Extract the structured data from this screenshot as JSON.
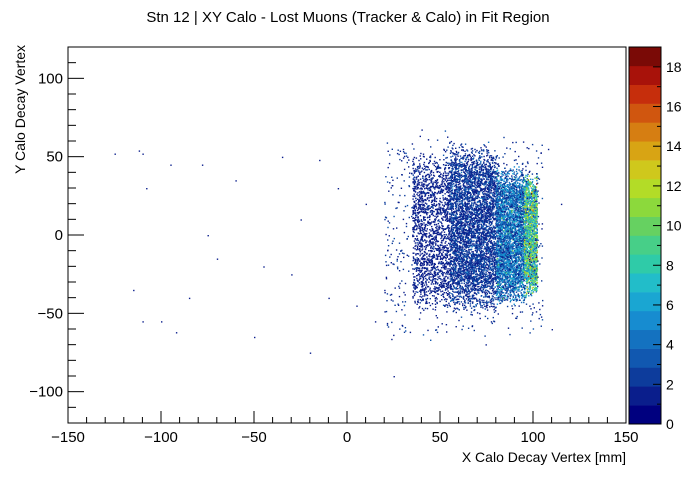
{
  "chart_data": {
    "type": "heatmap",
    "title": "Stn 12 | XY Calo - Lost Muons (Tracker & Calo) in Fit Region",
    "xlabel": "X Calo Decay Vertex [mm]",
    "ylabel": "Y Calo Decay Vertex",
    "xlim": [
      -150,
      150
    ],
    "ylim": [
      -120,
      120
    ],
    "x_ticks": [
      -150,
      -100,
      -50,
      0,
      50,
      100,
      150
    ],
    "y_ticks": [
      -100,
      -50,
      0,
      50,
      100
    ],
    "x_tick_labels": [
      "−150",
      "−100",
      "−50",
      "0",
      "50",
      "100",
      "150"
    ],
    "y_tick_labels": [
      "−100",
      "−50",
      "0",
      "50",
      "100"
    ],
    "colorbar": {
      "min": 0,
      "max": 19,
      "ticks": [
        0,
        2,
        4,
        6,
        8,
        10,
        12,
        14,
        16,
        18
      ],
      "colors": [
        "#00007f",
        "#0a1e8c",
        "#0d3c9c",
        "#1158b0",
        "#1472c0",
        "#178cd0",
        "#1aa6d2",
        "#22bdc9",
        "#2fcba8",
        "#47cf88",
        "#66d161",
        "#8cd93c",
        "#b3dc27",
        "#cfc81c",
        "#d8a414",
        "#d67e12",
        "#d0560f",
        "#c62e0c",
        "#a8120a",
        "#7a0a06"
      ]
    },
    "grid": false,
    "legend": "none",
    "density_regions": [
      {
        "x_range": [
          35,
          55
        ],
        "y_range": [
          -50,
          55
        ],
        "typical_count": 1
      },
      {
        "x_range": [
          55,
          80
        ],
        "y_range": [
          -50,
          60
        ],
        "typical_count": 2
      },
      {
        "x_range": [
          80,
          95
        ],
        "y_range": [
          -45,
          45
        ],
        "typical_count": 4
      },
      {
        "x_range": [
          95,
          102
        ],
        "y_range": [
          -40,
          40
        ],
        "typical_count": 8
      }
    ],
    "hot_spots": [
      {
        "x": 98,
        "y": 15,
        "value": 12
      },
      {
        "x": 97,
        "y": -10,
        "value": 11
      },
      {
        "x": 99,
        "y": 0,
        "value": 10
      },
      {
        "x": 96,
        "y": -20,
        "value": 9
      },
      {
        "x": 98,
        "y": 28,
        "value": 9
      },
      {
        "x": 95,
        "y": 5,
        "value": 8
      },
      {
        "x": 100,
        "y": -30,
        "value": 8
      },
      {
        "x": 90,
        "y": 10,
        "value": 7
      },
      {
        "x": 92,
        "y": -5,
        "value": 7
      },
      {
        "x": 88,
        "y": -25,
        "value": 7
      }
    ],
    "sparse_points": [
      [
        -125,
        52
      ],
      [
        -112,
        54
      ],
      [
        -110,
        52
      ],
      [
        -95,
        45
      ],
      [
        -108,
        30
      ],
      [
        -78,
        45
      ],
      [
        -115,
        -35
      ],
      [
        -110,
        -55
      ],
      [
        -100,
        -55
      ],
      [
        -92,
        -62
      ],
      [
        -60,
        35
      ],
      [
        -35,
        50
      ],
      [
        -15,
        48
      ],
      [
        -75,
        0
      ],
      [
        -70,
        -15
      ],
      [
        -45,
        -20
      ],
      [
        -30,
        -25
      ],
      [
        -85,
        -40
      ],
      [
        -25,
        10
      ],
      [
        -10,
        -40
      ],
      [
        -5,
        30
      ],
      [
        5,
        -45
      ],
      [
        10,
        20
      ],
      [
        15,
        -55
      ],
      [
        20,
        -35
      ],
      [
        25,
        -90
      ],
      [
        30,
        55
      ],
      [
        110,
        -60
      ],
      [
        108,
        55
      ],
      [
        115,
        20
      ],
      [
        -50,
        -65
      ],
      [
        -20,
        -75
      ]
    ]
  }
}
